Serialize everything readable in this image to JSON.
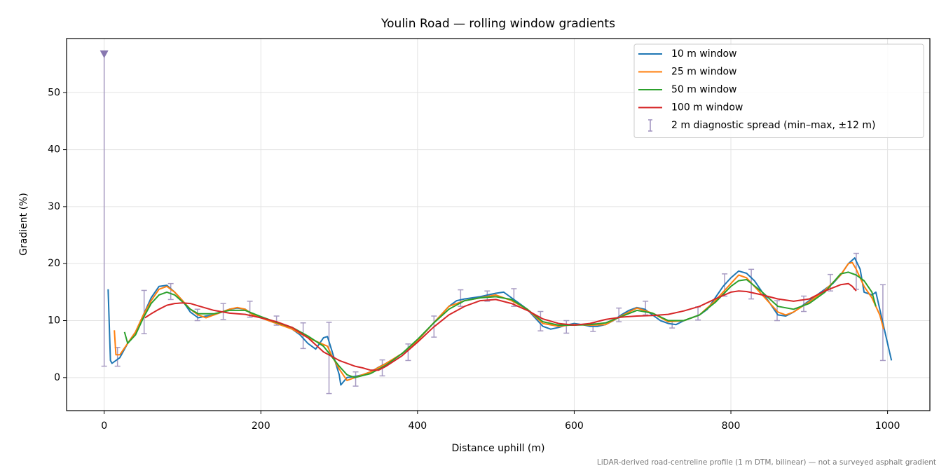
{
  "chart_data": {
    "type": "line",
    "title": "Youlin Road — rolling window gradients",
    "xlabel": "Distance uphill (m)",
    "ylabel": "Gradient (%)",
    "footnote": "LiDAR-derived road-centreline profile (1 m DTM, bilinear) — not a surveyed asphalt gradient",
    "xlim": [
      -48,
      1054
    ],
    "ylim": [
      -5.8,
      59.5
    ],
    "xticks": [
      0,
      200,
      400,
      600,
      800,
      1000
    ],
    "yticks": [
      0,
      10,
      20,
      30,
      40,
      50
    ],
    "grid": true,
    "legend": "upper right",
    "series": [
      {
        "name": "10 m window",
        "color": "#1f77b4",
        "x": [
          5,
          8,
          10,
          20,
          30,
          40,
          50,
          60,
          70,
          80,
          90,
          100,
          110,
          120,
          130,
          140,
          150,
          160,
          170,
          180,
          190,
          200,
          210,
          220,
          230,
          240,
          250,
          260,
          270,
          280,
          285,
          290,
          300,
          302,
          310,
          320,
          330,
          340,
          350,
          360,
          370,
          380,
          390,
          400,
          410,
          420,
          430,
          440,
          450,
          460,
          470,
          480,
          490,
          500,
          510,
          520,
          530,
          540,
          550,
          560,
          570,
          580,
          590,
          600,
          610,
          620,
          630,
          640,
          650,
          660,
          670,
          680,
          690,
          700,
          710,
          720,
          730,
          740,
          750,
          760,
          770,
          780,
          790,
          800,
          810,
          820,
          830,
          840,
          850,
          860,
          870,
          880,
          890,
          900,
          910,
          920,
          930,
          940,
          950,
          958,
          965,
          970,
          980,
          985,
          990,
          1000,
          1005
        ],
        "values": [
          15.5,
          3,
          2.5,
          3.5,
          6,
          8,
          11,
          14,
          16,
          16.2,
          15,
          13.5,
          11.5,
          10.5,
          10.8,
          11,
          11.5,
          12,
          12.2,
          12,
          11,
          10.5,
          10,
          9.5,
          9.2,
          8.5,
          7.5,
          6,
          5,
          7,
          7.2,
          5,
          0.5,
          -1.3,
          0,
          0.2,
          0.5,
          1,
          1.8,
          2.5,
          3.3,
          4.2,
          5.2,
          6.5,
          8,
          9.5,
          11,
          12.5,
          13.5,
          13.8,
          14,
          14.2,
          14.5,
          14.8,
          15,
          14,
          13,
          12,
          10.5,
          9,
          8.5,
          8.8,
          9.2,
          9.5,
          9.3,
          9,
          9,
          9.3,
          10,
          11,
          11.8,
          12.3,
          12,
          11,
          10,
          9.5,
          9.3,
          10,
          10.5,
          11,
          12,
          14,
          16,
          17.5,
          18.7,
          18.3,
          17,
          15,
          13,
          11,
          10.8,
          11.5,
          12.5,
          13.5,
          14.5,
          15.5,
          16.5,
          18,
          20,
          21,
          19,
          15,
          14.5,
          15,
          12,
          6,
          3
        ]
      },
      {
        "name": "25 m window",
        "color": "#ff7f0e",
        "x": [
          13,
          15,
          20,
          30,
          40,
          50,
          60,
          70,
          80,
          90,
          100,
          110,
          120,
          130,
          140,
          150,
          160,
          170,
          180,
          190,
          200,
          220,
          240,
          260,
          280,
          285,
          290,
          300,
          310,
          320,
          340,
          360,
          380,
          400,
          420,
          440,
          460,
          480,
          500,
          520,
          540,
          560,
          580,
          600,
          620,
          640,
          660,
          680,
          700,
          720,
          740,
          760,
          780,
          800,
          810,
          820,
          840,
          860,
          870,
          880,
          900,
          920,
          940,
          950,
          955,
          960,
          970,
          980,
          990,
          995
        ],
        "values": [
          8.3,
          4,
          4,
          6,
          8,
          11,
          13.5,
          15.5,
          16,
          15,
          13.5,
          12,
          11,
          10.5,
          11,
          11.5,
          12,
          12.3,
          12,
          11,
          10.5,
          9.5,
          8.5,
          7,
          5.8,
          5.5,
          4,
          1.5,
          -0.5,
          0,
          1,
          2.5,
          4.2,
          6.5,
          9.5,
          12.5,
          13.5,
          14,
          14.5,
          13.5,
          12,
          9.5,
          9,
          9.3,
          9.2,
          9.3,
          10.8,
          12.2,
          11.3,
          9.8,
          10,
          11,
          13.5,
          16.5,
          18,
          17.5,
          14.5,
          11.5,
          11,
          11.5,
          13.3,
          15.3,
          18,
          20,
          20.2,
          19,
          16,
          14,
          11,
          8.5
        ]
      },
      {
        "name": "50 m window",
        "color": "#2ca02c",
        "x": [
          26,
          30,
          40,
          50,
          60,
          70,
          80,
          90,
          100,
          110,
          120,
          140,
          160,
          180,
          200,
          220,
          240,
          260,
          280,
          300,
          310,
          320,
          340,
          360,
          380,
          400,
          420,
          440,
          460,
          480,
          500,
          520,
          540,
          560,
          580,
          600,
          620,
          640,
          660,
          680,
          700,
          720,
          740,
          760,
          780,
          800,
          810,
          820,
          840,
          860,
          880,
          900,
          920,
          940,
          950,
          960,
          970,
          980,
          985
        ],
        "values": [
          8,
          6,
          7.5,
          10.5,
          13,
          14.5,
          15,
          14.5,
          13.3,
          12,
          11.2,
          11.2,
          11.8,
          11.8,
          10.7,
          9.7,
          8.8,
          7.3,
          5.5,
          2,
          0.5,
          0,
          0.7,
          2.2,
          4.2,
          6.7,
          9.5,
          12,
          13.5,
          14,
          14.2,
          13.7,
          12,
          9.8,
          9.2,
          9.2,
          9.3,
          9.6,
          10.7,
          11.8,
          11.3,
          10,
          10,
          11,
          13.2,
          16,
          17,
          17.2,
          15,
          12.5,
          12,
          13,
          15,
          18.2,
          18.5,
          18,
          17,
          15,
          12.5
        ]
      },
      {
        "name": "100 m window",
        "color": "#d62728",
        "x": [
          52,
          60,
          70,
          80,
          90,
          100,
          110,
          120,
          140,
          160,
          180,
          200,
          220,
          240,
          260,
          280,
          300,
          320,
          330,
          340,
          350,
          360,
          380,
          400,
          420,
          440,
          460,
          480,
          500,
          520,
          540,
          560,
          580,
          600,
          620,
          640,
          660,
          680,
          700,
          720,
          740,
          760,
          780,
          800,
          810,
          820,
          840,
          860,
          880,
          900,
          920,
          940,
          950,
          955,
          960
        ],
        "values": [
          10.5,
          11.2,
          12,
          12.7,
          13,
          13.1,
          13,
          12.6,
          11.8,
          11.3,
          11.1,
          10.5,
          9.8,
          8.8,
          7,
          4.5,
          3,
          2,
          1.7,
          1.3,
          1.3,
          2,
          3.8,
          6.2,
          8.8,
          11,
          12.5,
          13.5,
          13.7,
          13,
          11.8,
          10.3,
          9.5,
          9.2,
          9.5,
          10.2,
          10.6,
          10.8,
          10.9,
          11.1,
          11.7,
          12.5,
          13.8,
          15,
          15.2,
          15.1,
          14.5,
          13.8,
          13.4,
          13.8,
          15.2,
          16.3,
          16.5,
          16,
          15.2
        ]
      }
    ],
    "error_bars": {
      "name": "2 m diagnostic spread (min–max, ±12 m)",
      "color": "#9e91bd",
      "x": [
        0,
        17,
        51,
        85,
        119,
        152,
        186,
        220,
        254,
        287,
        321,
        355,
        388,
        421,
        455,
        489,
        523,
        557,
        590,
        624,
        657,
        691,
        725,
        758,
        792,
        826,
        859,
        893,
        927,
        960,
        994
      ],
      "low": [
        2,
        2,
        7.7,
        13.7,
        10,
        10.2,
        10.6,
        9.2,
        5.1,
        -2.8,
        -1.5,
        0.3,
        3,
        7.1,
        12.5,
        13.4,
        12.5,
        8.2,
        7.8,
        8.1,
        9.8,
        11,
        8.7,
        10.1,
        14.3,
        13.8,
        10,
        11.6,
        15.2,
        15.5,
        3
      ],
      "high": [
        57,
        5.3,
        15.3,
        16.5,
        12,
        13,
        13.4,
        10.8,
        9.6,
        9.7,
        1,
        3.1,
        5.9,
        10.8,
        15.4,
        15.2,
        15.6,
        11.6,
        10,
        9.5,
        12.2,
        13.4,
        10,
        12.4,
        18.2,
        19,
        13.5,
        14.3,
        18.1,
        21.8,
        16.3
      ],
      "peak": {
        "x": 0,
        "value": 56.8
      }
    }
  }
}
